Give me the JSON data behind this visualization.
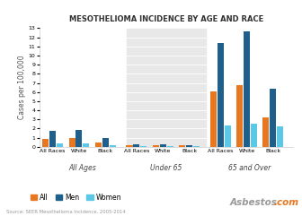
{
  "title": "MESOTHELIOMA INCIDENCE BY AGE AND RACE",
  "ylabel": "Cases per 100,000",
  "ylim": [
    0,
    13
  ],
  "yticks": [
    0,
    1,
    2,
    3,
    4,
    5,
    6,
    7,
    8,
    9,
    10,
    11,
    12,
    13
  ],
  "groups": [
    {
      "label": "All Ages",
      "shaded": false,
      "bars": [
        {
          "race": "All Races",
          "all": 0.85,
          "men": 1.75,
          "women": 0.35
        },
        {
          "race": "White",
          "all": 0.95,
          "men": 1.9,
          "women": 0.4
        },
        {
          "race": "Black",
          "all": 0.5,
          "men": 1.0,
          "women": 0.2
        }
      ]
    },
    {
      "label": "Under 65",
      "shaded": true,
      "bars": [
        {
          "race": "All Races",
          "all": 0.18,
          "men": 0.25,
          "women": 0.08
        },
        {
          "race": "White",
          "all": 0.18,
          "men": 0.25,
          "women": 0.08
        },
        {
          "race": "Black",
          "all": 0.15,
          "men": 0.2,
          "women": 0.06
        }
      ]
    },
    {
      "label": "65 and Over",
      "shaded": false,
      "bars": [
        {
          "race": "All Races",
          "all": 6.05,
          "men": 11.35,
          "women": 2.3
        },
        {
          "race": "White",
          "all": 6.75,
          "men": 12.65,
          "women": 2.5
        },
        {
          "race": "Black",
          "all": 3.25,
          "men": 6.35,
          "women": 2.2
        }
      ]
    }
  ],
  "colors": {
    "all": "#E87722",
    "men": "#1F5F8B",
    "women": "#5BC8E8"
  },
  "shaded_color": "#E8E8E8",
  "background_color": "#FFFFFF",
  "legend_labels": [
    "All",
    "Men",
    "Women"
  ],
  "source_text": "Source: SEER Mesothelioma Incidence, 2005-2014",
  "title_fontsize": 6.0,
  "label_fontsize": 5.5,
  "tick_fontsize": 4.5,
  "legend_fontsize": 5.5,
  "source_fontsize": 3.8
}
